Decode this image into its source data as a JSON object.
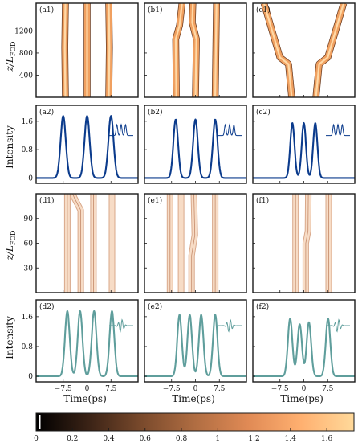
{
  "chart_data": {
    "type": "figure-grid",
    "layout": {
      "rows": 4,
      "cols": 3
    },
    "ylabels": {
      "propagation": "z/L",
      "propagation_sub": "FOD",
      "intensity": "Intensity"
    },
    "xlabel": "Time(ps)",
    "x_ticks": [
      -7.5,
      0,
      7.5
    ],
    "x_tick_labels": [
      "−7.5",
      "0",
      "7.5"
    ],
    "xlim": [
      -16,
      16
    ],
    "colorbar": {
      "ticks": [
        0,
        0.2,
        0.4,
        0.6,
        0.8,
        1.0,
        1.2,
        1.4,
        1.6
      ],
      "tick_labels": [
        "0",
        "0.2",
        "0.4",
        "0.6",
        "0.8",
        "1",
        "1.2",
        "1.4",
        "1.6"
      ],
      "range": [
        0,
        1.75
      ],
      "colors": [
        "#000000",
        "#3b2316",
        "#7a4a2c",
        "#b06d42",
        "#e08a55",
        "#ffb070",
        "#ffd99a"
      ]
    },
    "evolution_rows": [
      {
        "y_ticks": [
          400,
          800,
          1200
        ],
        "y_tick_labels": [
          "400",
          "800",
          "1200"
        ],
        "ylim": [
          0,
          1700
        ],
        "panels": [
          {
            "tag": "(a1)",
            "tracks": [
              [
                [
                  0,
                  -6.8
                ],
                [
                  900,
                  -7.0
                ],
                [
                  1700,
                  -6.8
                ]
              ],
              [
                [
                  0,
                  0
                ],
                [
                  1700,
                  0
                ]
              ],
              [
                [
                  0,
                  6.8
                ],
                [
                  900,
                  7.0
                ],
                [
                  1700,
                  6.8
                ]
              ]
            ]
          },
          {
            "tag": "(b1)",
            "tracks": [
              [
                [
                  0,
                  -6.0
                ],
                [
                  1050,
                  -6.2
                ],
                [
                  1300,
                  -5.0
                ],
                [
                  1700,
                  -4.2
                ]
              ],
              [
                [
                  0,
                  0
                ],
                [
                  1050,
                  0.3
                ],
                [
                  1350,
                  -1.0
                ],
                [
                  1700,
                  -0.8
                ]
              ],
              [
                [
                  0,
                  6.2
                ],
                [
                  1700,
                  6.6
                ]
              ]
            ]
          },
          {
            "tag": "(c1)",
            "tracks": [
              [
                [
                  0,
                  -3.8
                ],
                [
                  600,
                  -4.8
                ],
                [
                  720,
                  -7.5
                ],
                [
                  1700,
                  -12.5
                ]
              ],
              [
                [
                  0,
                  3.8
                ],
                [
                  600,
                  4.8
                ],
                [
                  720,
                  7.5
                ],
                [
                  1700,
                  12.5
                ]
              ]
            ]
          }
        ]
      },
      {
        "y_ticks": [
          30,
          60,
          90
        ],
        "y_tick_labels": [
          "30",
          "60",
          "90"
        ],
        "ylim": [
          0,
          120
        ],
        "panels": [
          {
            "tag": "(d1)",
            "tracks": [
              [
                [
                  0,
                  -6.2
                ],
                [
                  120,
                  -6.2
                ]
              ],
              [
                [
                  0,
                  -2.0
                ],
                [
                  100,
                  -2.0
                ],
                [
                  115,
                  -4.0
                ],
                [
                  120,
                  -4.5
                ]
              ],
              [
                [
                  0,
                  2.0
                ],
                [
                  120,
                  2.0
                ]
              ],
              [
                [
                  0,
                  7.8
                ],
                [
                  120,
                  7.8
                ]
              ]
            ]
          },
          {
            "tag": "(e1)",
            "tracks": [
              [
                [
                  0,
                  -8.0
                ],
                [
                  120,
                  -8.0
                ]
              ],
              [
                [
                  0,
                  -4.5
                ],
                [
                  120,
                  -4.5
                ]
              ],
              [
                [
                  0,
                  -1.2
                ],
                [
                  45,
                  -1.2
                ],
                [
                  70,
                  -0.2
                ],
                [
                  120,
                  -0.5
                ]
              ],
              [
                [
                  0,
                  6.2
                ],
                [
                  120,
                  6.2
                ]
              ]
            ]
          },
          {
            "tag": "(f1)",
            "tracks": [
              [
                [
                  0,
                  -2.6
                ],
                [
                  120,
                  -2.6
                ]
              ],
              [
                [
                  0,
                  0.6
                ],
                [
                  60,
                  0.6
                ],
                [
                  75,
                  1.3
                ],
                [
                  120,
                  1.4
                ]
              ],
              [
                [
                  0,
                  7.8
                ],
                [
                  120,
                  7.8
                ]
              ]
            ]
          }
        ]
      }
    ],
    "profile_rows": [
      {
        "y_ticks": [
          0,
          0.8,
          1.6
        ],
        "y_tick_labels": [
          "0",
          "0.8",
          "1.6"
        ],
        "ylim": [
          -0.15,
          2.05
        ],
        "color": "#0b3b8c",
        "panels": [
          {
            "tag": "(a2)",
            "pulses": [
              [
                -7.5,
                1.75
              ],
              [
                0,
                1.75
              ],
              [
                7.5,
                1.75
              ]
            ],
            "width": 1.15
          },
          {
            "tag": "(b2)",
            "pulses": [
              [
                -6.2,
                1.65
              ],
              [
                0,
                1.65
              ],
              [
                6.2,
                1.65
              ]
            ],
            "width": 1.05
          },
          {
            "tag": "(c2)",
            "pulses": [
              [
                -3.6,
                1.55
              ],
              [
                0,
                1.55
              ],
              [
                3.6,
                1.55
              ]
            ],
            "width": 0.95
          }
        ],
        "inset_kind": "comb"
      },
      {
        "y_ticks": [
          0,
          0.8,
          1.6
        ],
        "y_tick_labels": [
          "0",
          "0.8",
          "1.6"
        ],
        "ylim": [
          -0.15,
          2.05
        ],
        "color": "#5f9e9c",
        "panels": [
          {
            "tag": "(d2)",
            "pulses": [
              [
                -6.2,
                1.75
              ],
              [
                -2.2,
                1.75
              ],
              [
                2.2,
                1.75
              ],
              [
                7.8,
                1.75
              ]
            ],
            "width": 1.05
          },
          {
            "tag": "(e2)",
            "pulses": [
              [
                -5.0,
                1.65
              ],
              [
                -1.8,
                1.65
              ],
              [
                1.8,
                1.65
              ],
              [
                6.2,
                1.65
              ]
            ],
            "width": 1.0
          },
          {
            "tag": "(f2)",
            "pulses": [
              [
                -4.3,
                1.55
              ],
              [
                -1.3,
                1.4
              ],
              [
                1.6,
                1.45
              ],
              [
                7.6,
                1.55
              ]
            ],
            "width": 1.0
          }
        ],
        "inset_kind": "wave"
      }
    ]
  }
}
